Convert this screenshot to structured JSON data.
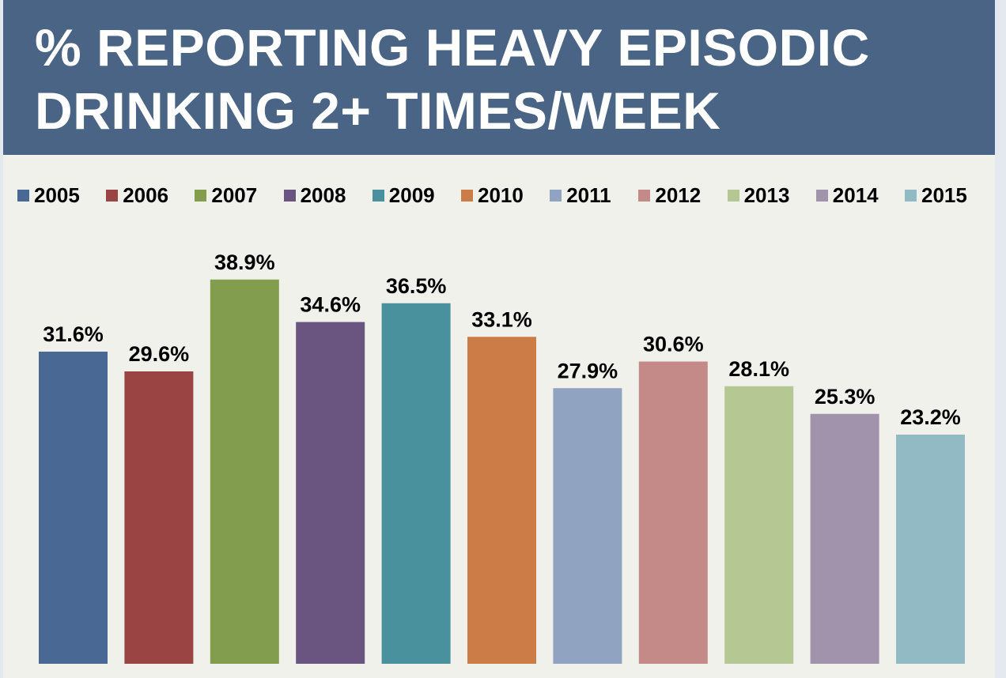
{
  "chart_data": {
    "type": "bar",
    "title_lines": [
      "% REPORTING HEAVY EPISODIC",
      "DRINKING 2+ TIMES/WEEK"
    ],
    "categories": [
      "2005",
      "2006",
      "2007",
      "2008",
      "2009",
      "2010",
      "2011",
      "2012",
      "2013",
      "2014",
      "2015"
    ],
    "values": [
      31.6,
      29.6,
      38.9,
      34.6,
      36.5,
      33.1,
      27.9,
      30.6,
      28.1,
      25.3,
      23.2
    ],
    "data_labels": [
      "31.6%",
      "29.6%",
      "38.9%",
      "34.6%",
      "36.5%",
      "33.1%",
      "27.9%",
      "30.6%",
      "28.1%",
      "25.3%",
      "23.2%"
    ],
    "colors": [
      "#4A6894",
      "#9A4443",
      "#839D4E",
      "#6A5480",
      "#4A919E",
      "#CB7C47",
      "#90A3C1",
      "#C48A87",
      "#B5C792",
      "#A293AD",
      "#91BAC4"
    ],
    "legend_placement": "top",
    "xlabel": "",
    "ylabel": "",
    "ylim": [
      0,
      40
    ],
    "grid": false
  }
}
